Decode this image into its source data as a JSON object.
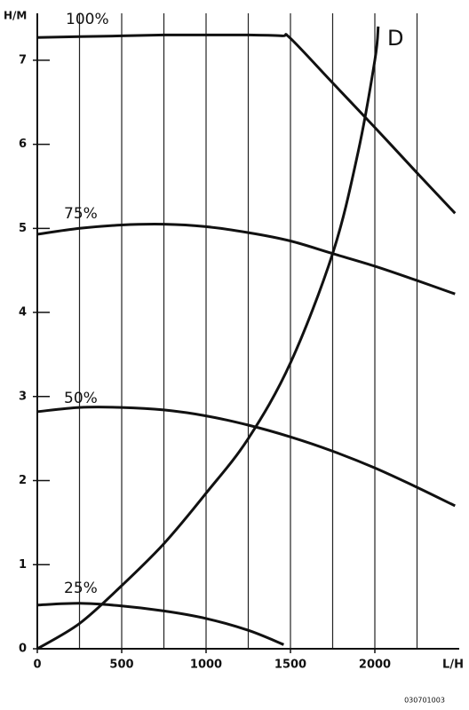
{
  "chart_data": {
    "type": "line",
    "y_label": "H/M",
    "x_label": "L/H",
    "footer": "030701003",
    "xlim": [
      0,
      2500
    ],
    "ylim": [
      0,
      7.6
    ],
    "xticks": [
      0,
      500,
      1000,
      1500,
      2000
    ],
    "yticks": [
      0,
      1,
      2,
      3,
      4,
      5,
      6,
      7
    ],
    "xgrid": [
      250,
      500,
      750,
      1000,
      1250,
      1500,
      1750,
      2000,
      2250
    ],
    "grid": true,
    "series": [
      {
        "name": "100%",
        "color": "#111111",
        "x": [
          0,
          250,
          500,
          750,
          1000,
          1250,
          1450,
          1500,
          1750,
          2000,
          2250,
          2475
        ],
        "values": [
          7.27,
          7.28,
          7.29,
          7.3,
          7.3,
          7.3,
          7.29,
          7.26,
          6.73,
          6.2,
          5.66,
          5.18
        ]
      },
      {
        "name": "75%",
        "color": "#111111",
        "x": [
          0,
          250,
          500,
          750,
          1000,
          1250,
          1500,
          1750,
          2000,
          2250,
          2475
        ],
        "values": [
          4.93,
          5.0,
          5.04,
          5.05,
          5.02,
          4.95,
          4.85,
          4.7,
          4.55,
          4.38,
          4.22
        ]
      },
      {
        "name": "50%",
        "color": "#111111",
        "x": [
          0,
          250,
          500,
          750,
          1000,
          1250,
          1500,
          1750,
          2000,
          2250,
          2475
        ],
        "values": [
          2.82,
          2.87,
          2.87,
          2.84,
          2.77,
          2.66,
          2.52,
          2.35,
          2.15,
          1.92,
          1.7
        ]
      },
      {
        "name": "25%",
        "color": "#111111",
        "x": [
          0,
          250,
          500,
          750,
          1000,
          1250,
          1460
        ],
        "values": [
          0.52,
          0.54,
          0.51,
          0.45,
          0.36,
          0.22,
          0.05
        ]
      },
      {
        "name": "D",
        "color": "#111111",
        "x": [
          0,
          250,
          500,
          750,
          1000,
          1250,
          1500,
          1750,
          1900,
          2000,
          2020
        ],
        "values": [
          0,
          0.3,
          0.75,
          1.25,
          1.85,
          2.5,
          3.4,
          4.7,
          5.9,
          7.0,
          7.4
        ]
      }
    ]
  }
}
